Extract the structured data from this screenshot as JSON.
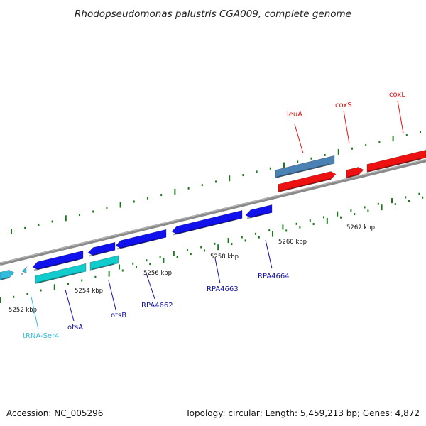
{
  "title": "Rhodopseudomonas palustris CGA009, complete genome",
  "footer": {
    "accession": "Accession: NC_005296",
    "summary": "Topology: circular; Length: 5,459,213 bp; Genes: 4,872"
  },
  "colors": {
    "tick": "#1a7a1a",
    "backbone": "#808080",
    "blue_gene": "#1111ee",
    "cyan_gene": "#11cccc",
    "steel_gene": "#4a82b4",
    "red_gene": "#ee1111",
    "trna": "#33bbdd"
  },
  "scale_labels": [
    "5252 kbp",
    "5254 kbp",
    "5256 kbp",
    "5258 kbp",
    "5260 kbp",
    "5262 kbp"
  ],
  "genes": [
    {
      "id": "tRNA-Ser4",
      "label": "tRNA-Ser4",
      "type": "trna"
    },
    {
      "id": "otsA",
      "label": "otsA",
      "type": "cyan"
    },
    {
      "id": "otsB",
      "label": "otsB",
      "type": "cyan"
    },
    {
      "id": "RPA4662",
      "label": "RPA4662",
      "type": "blue"
    },
    {
      "id": "RPA4663",
      "label": "RPA4663",
      "type": "blue"
    },
    {
      "id": "RPA4664",
      "label": "RPA4664",
      "type": "blue"
    },
    {
      "id": "leuA",
      "label": "leuA",
      "type": "steel"
    },
    {
      "id": "coxS",
      "label": "coxS",
      "type": "red"
    },
    {
      "id": "coxL",
      "label": "coxL",
      "type": "red"
    }
  ]
}
